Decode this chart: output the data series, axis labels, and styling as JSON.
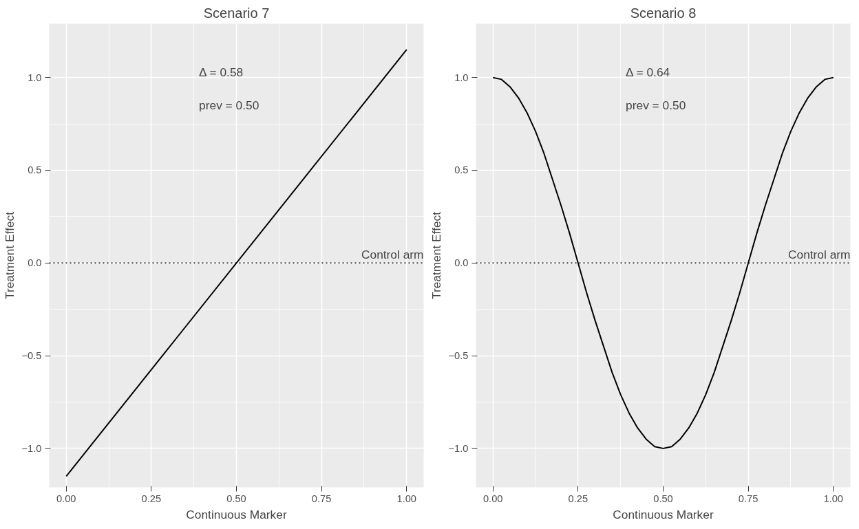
{
  "chart_data": [
    {
      "type": "line",
      "title": "Scenario 7",
      "xlabel": "Continuous Marker",
      "ylabel": "Treatment Effect",
      "x": [
        0,
        1
      ],
      "series": [
        {
          "color": "#000000",
          "values": [
            -1.15,
            1.15
          ]
        }
      ],
      "xlim": [
        -0.05,
        1.05
      ],
      "ylim": [
        -1.21,
        1.29
      ],
      "xticks": [
        {
          "value": 0,
          "label": "0.00"
        },
        {
          "value": 0.25,
          "label": "0.25"
        },
        {
          "value": 0.5,
          "label": "0.50"
        },
        {
          "value": 0.75,
          "label": "0.75"
        },
        {
          "value": 1,
          "label": "1.00"
        }
      ],
      "yticks": [
        {
          "value": -1,
          "label": "−1.0"
        },
        {
          "value": -0.5,
          "label": "−0.5"
        },
        {
          "value": 0,
          "label": "0.0"
        },
        {
          "value": 0.5,
          "label": "0.5"
        },
        {
          "value": 1,
          "label": "1.0"
        }
      ],
      "grid": true,
      "line_style": "solid",
      "ref_lines": [
        {
          "axis": "y",
          "value": 0,
          "label": "Control arm",
          "line_style": "dotted",
          "color": "#000000"
        }
      ],
      "annotations": [
        "Δ = 0.58",
        "prev = 0.50"
      ]
    },
    {
      "type": "line",
      "title": "Scenario 8",
      "xlabel": "Continuous Marker",
      "ylabel": "Treatment Effect",
      "x": [
        0,
        0.025,
        0.05,
        0.075,
        0.1,
        0.125,
        0.15,
        0.175,
        0.2,
        0.225,
        0.25,
        0.275,
        0.3,
        0.325,
        0.35,
        0.375,
        0.4,
        0.425,
        0.45,
        0.475,
        0.5,
        0.525,
        0.55,
        0.575,
        0.6,
        0.625,
        0.65,
        0.675,
        0.7,
        0.725,
        0.75,
        0.775,
        0.8,
        0.825,
        0.85,
        0.875,
        0.9,
        0.925,
        0.95,
        0.975,
        1
      ],
      "series": [
        {
          "color": "#000000",
          "values": [
            1,
            0.99,
            0.95,
            0.89,
            0.81,
            0.71,
            0.59,
            0.45,
            0.31,
            0.16,
            0,
            -0.16,
            -0.31,
            -0.45,
            -0.59,
            -0.71,
            -0.81,
            -0.89,
            -0.95,
            -0.99,
            -1,
            -0.99,
            -0.95,
            -0.89,
            -0.81,
            -0.71,
            -0.59,
            -0.45,
            -0.31,
            -0.16,
            0,
            0.16,
            0.31,
            0.45,
            0.59,
            0.71,
            0.81,
            0.89,
            0.95,
            0.99,
            1
          ]
        }
      ],
      "xlim": [
        -0.05,
        1.05
      ],
      "ylim": [
        -1.21,
        1.29
      ],
      "xticks": [
        {
          "value": 0,
          "label": "0.00"
        },
        {
          "value": 0.25,
          "label": "0.25"
        },
        {
          "value": 0.5,
          "label": "0.50"
        },
        {
          "value": 0.75,
          "label": "0.75"
        },
        {
          "value": 1,
          "label": "1.00"
        }
      ],
      "yticks": [
        {
          "value": -1,
          "label": "−1.0"
        },
        {
          "value": -0.5,
          "label": "−0.5"
        },
        {
          "value": 0,
          "label": "0.0"
        },
        {
          "value": 0.5,
          "label": "0.5"
        },
        {
          "value": 1,
          "label": "1.0"
        }
      ],
      "grid": true,
      "line_style": "solid",
      "ref_lines": [
        {
          "axis": "y",
          "value": 0,
          "label": "Control arm",
          "line_style": "dotted",
          "color": "#000000"
        }
      ],
      "annotations": [
        "Δ = 0.64",
        "prev = 0.50"
      ]
    }
  ]
}
